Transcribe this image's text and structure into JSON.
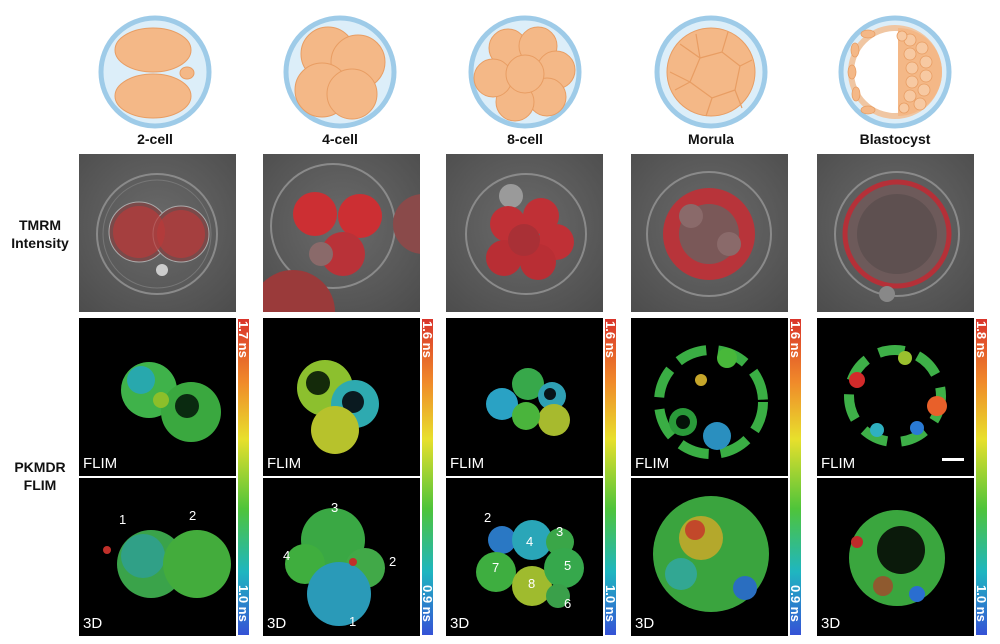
{
  "stages": [
    {
      "title": "2-cell",
      "flim_tag": "FLIM",
      "d3_tag": "3D",
      "range_max": "1.7 ns",
      "range_min": "1.0 ns",
      "cell_numbers": [
        "1",
        "2"
      ]
    },
    {
      "title": "4-cell",
      "flim_tag": "FLIM",
      "d3_tag": "3D",
      "range_max": "1.6 ns",
      "range_min": "0.9 ns",
      "cell_numbers": [
        "1",
        "2",
        "3",
        "4"
      ]
    },
    {
      "title": "8-cell",
      "flim_tag": "FLIM",
      "d3_tag": "3D",
      "range_max": "1.6 ns",
      "range_min": "1.0 ns",
      "cell_numbers": [
        "2",
        "3",
        "4",
        "5",
        "6",
        "7",
        "8"
      ]
    },
    {
      "title": "Morula",
      "flim_tag": "FLIM",
      "d3_tag": "3D",
      "range_max": "1.6 ns",
      "range_min": "0.9 ns",
      "cell_numbers": []
    },
    {
      "title": "Blastocyst",
      "flim_tag": "FLIM",
      "d3_tag": "3D",
      "range_max": "1.8 ns",
      "range_min": "1.0 ns",
      "cell_numbers": []
    }
  ],
  "row_labels": {
    "tmrm_line1": "TMRM",
    "tmrm_line2": "Intensity",
    "flim_line1": "PKMDR",
    "flim_line2": "FLIM"
  },
  "colors": {
    "embryo_fill": "#f4b887",
    "zona": "#9ecbe8",
    "mito_red": "#e0202a",
    "colorbar": [
      "#d9342b",
      "#f08a2a",
      "#e8e02c",
      "#4fc43a",
      "#1fb6c0",
      "#3552d6"
    ]
  }
}
